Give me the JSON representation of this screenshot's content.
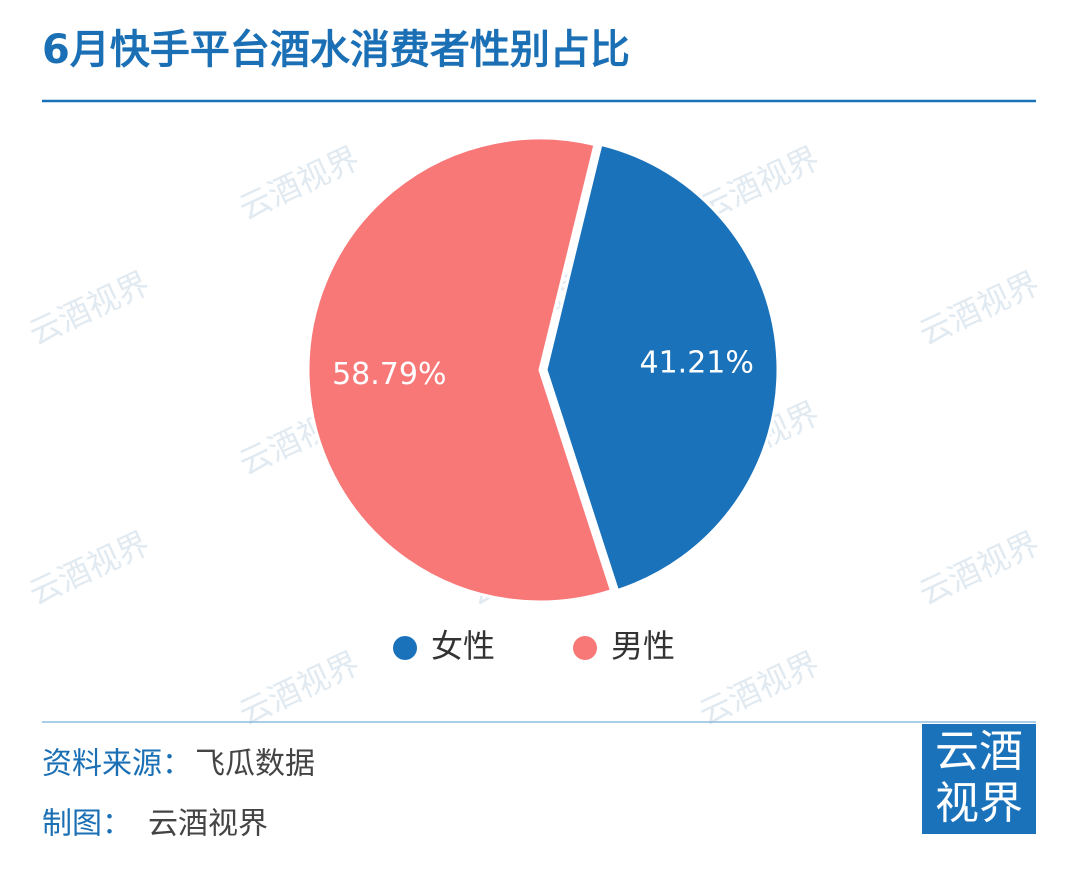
{
  "chart_data": {
    "type": "pie",
    "title": "6月快手平台酒水消费者性别占比",
    "categories": [
      "女性",
      "男性"
    ],
    "values": [
      41.21,
      58.79
    ],
    "value_labels": [
      "41.21%",
      "58.79%"
    ],
    "colors": [
      "#1a72bb",
      "#f87878"
    ],
    "legend": "bottom"
  },
  "footer": {
    "source_label": "资料来源：",
    "source": "飞瓜数据",
    "credit_label": "制图：",
    "credit": "云酒视界"
  },
  "logo": {
    "line1": "云酒",
    "line2": "视界"
  },
  "watermark": "云酒视界"
}
